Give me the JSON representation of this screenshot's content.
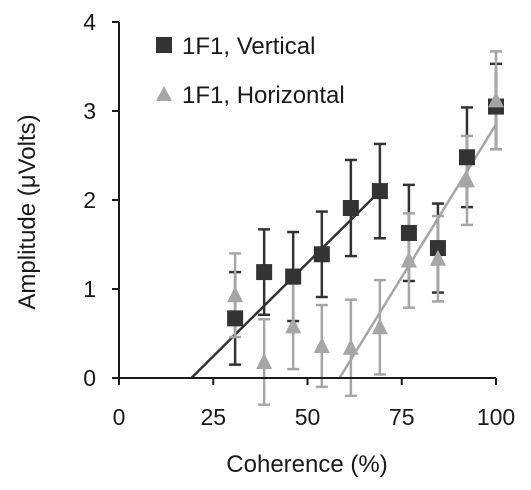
{
  "chart_data": {
    "type": "scatter",
    "xlabel": "Coherence (%)",
    "ylabel": "Amplitude (μVolts)",
    "xlim": [
      0,
      100
    ],
    "ylim": [
      0,
      4
    ],
    "xticks": [
      0,
      25,
      50,
      75,
      100
    ],
    "yticks": [
      0,
      1,
      2,
      3,
      4
    ],
    "grid": false,
    "legend_position": "top-left",
    "series": [
      {
        "name": "1F1, Vertical",
        "marker": "square",
        "color": "#333333",
        "points": [
          {
            "x": 30.8,
            "y": 0.67,
            "err": 0.52
          },
          {
            "x": 38.5,
            "y": 1.19,
            "err": 0.48
          },
          {
            "x": 46.2,
            "y": 1.14,
            "err": 0.5
          },
          {
            "x": 53.8,
            "y": 1.39,
            "err": 0.48
          },
          {
            "x": 61.5,
            "y": 1.91,
            "err": 0.54
          },
          {
            "x": 69.2,
            "y": 2.1,
            "err": 0.53
          },
          {
            "x": 76.9,
            "y": 1.63,
            "err": 0.54
          },
          {
            "x": 84.6,
            "y": 1.46,
            "err": 0.5
          },
          {
            "x": 92.3,
            "y": 2.48,
            "err": 0.56
          },
          {
            "x": 100.0,
            "y": 3.05,
            "err": 0.48
          }
        ],
        "fit": {
          "x": [
            19.2,
            69.2
          ],
          "y": [
            0.0,
            2.1
          ]
        }
      },
      {
        "name": "1F1, Horizontal",
        "marker": "triangle",
        "color": "#a6a6a6",
        "points": [
          {
            "x": 30.8,
            "y": 0.93,
            "err": 0.47
          },
          {
            "x": 38.5,
            "y": 0.18,
            "err": 0.48
          },
          {
            "x": 46.2,
            "y": 0.58,
            "err": 0.48
          },
          {
            "x": 53.8,
            "y": 0.36,
            "err": 0.46
          },
          {
            "x": 61.5,
            "y": 0.34,
            "err": 0.54
          },
          {
            "x": 69.2,
            "y": 0.57,
            "err": 0.53
          },
          {
            "x": 76.9,
            "y": 1.32,
            "err": 0.53
          },
          {
            "x": 84.6,
            "y": 1.34,
            "err": 0.48
          },
          {
            "x": 92.3,
            "y": 2.22,
            "err": 0.5
          },
          {
            "x": 100.0,
            "y": 3.12,
            "err": 0.55
          }
        ],
        "fit": {
          "x": [
            58.5,
            100.0
          ],
          "y": [
            0.0,
            2.85
          ]
        }
      }
    ]
  }
}
